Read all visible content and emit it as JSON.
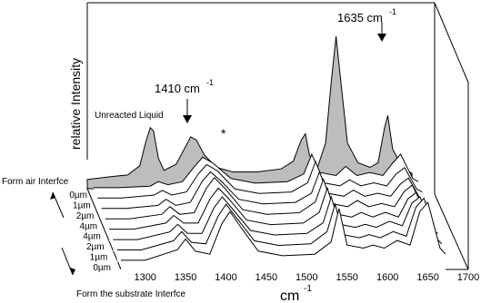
{
  "chart_data": {
    "type": "line",
    "subtype": "stacked-3d-spectra",
    "title": "",
    "xlabel": "cm",
    "xlabel_superscript": "-1",
    "ylabel": "relative Intensity",
    "xlim": [
      1270,
      1700
    ],
    "x_ticks": [
      1300,
      1350,
      1400,
      1450,
      1500,
      1550,
      1600,
      1650,
      1700
    ],
    "depth_axis": {
      "ticks": [
        "0µm",
        "1µm",
        "2µm",
        "4µm",
        "4µm",
        "2µm",
        "1µm",
        "0µm"
      ],
      "label_top": "Form air Interfce",
      "label_bottom": "Form the substrate Interfce"
    },
    "annotations": [
      {
        "text": "1410 cm",
        "sup": "-1",
        "x": 1350,
        "arrow": true
      },
      {
        "text": "1635 cm",
        "sup": "-1",
        "x": 1578,
        "arrow": true
      },
      {
        "text": "*",
        "x": 1397,
        "arrow": false
      },
      {
        "text": "Unreacted Liquid",
        "x": null,
        "arrow": false
      }
    ],
    "series": [
      {
        "name": "Unreacted Liquid",
        "filled": true,
        "x": [
          1270,
          1300,
          1320,
          1335,
          1342,
          1348,
          1352,
          1358,
          1365,
          1380,
          1390,
          1398,
          1405,
          1415,
          1430,
          1450,
          1480,
          1510,
          1525,
          1535,
          1540,
          1545,
          1555,
          1565,
          1572,
          1578,
          1584,
          1592,
          1605,
          1620,
          1630,
          1638,
          1642,
          1648,
          1660,
          1672
        ],
        "y": [
          0.06,
          0.08,
          0.09,
          0.15,
          0.3,
          0.4,
          0.38,
          0.2,
          0.12,
          0.16,
          0.26,
          0.34,
          0.32,
          0.22,
          0.14,
          0.11,
          0.11,
          0.13,
          0.18,
          0.32,
          0.36,
          0.22,
          0.14,
          0.3,
          0.7,
          1.0,
          0.7,
          0.3,
          0.17,
          0.14,
          0.17,
          0.4,
          0.48,
          0.26,
          0.14,
          0.1
        ]
      },
      {
        "name": "0µm (air)",
        "x": [
          1270,
          1300,
          1340,
          1350,
          1362,
          1380,
          1395,
          1405,
          1418,
          1440,
          1470,
          1510,
          1530,
          1540,
          1550,
          1570,
          1582,
          1596,
          1612,
          1628,
          1640,
          1650,
          1665,
          1672
        ],
        "y": [
          0.06,
          0.06,
          0.07,
          0.1,
          0.08,
          0.1,
          0.2,
          0.26,
          0.22,
          0.12,
          0.09,
          0.1,
          0.15,
          0.28,
          0.16,
          0.14,
          0.2,
          0.14,
          0.16,
          0.14,
          0.22,
          0.28,
          0.12,
          0.1
        ]
      },
      {
        "name": "1µm (air)",
        "x": [
          1270,
          1300,
          1340,
          1350,
          1362,
          1380,
          1395,
          1405,
          1418,
          1440,
          1470,
          1510,
          1530,
          1540,
          1550,
          1570,
          1582,
          1596,
          1612,
          1628,
          1640,
          1650,
          1665,
          1672
        ],
        "y": [
          0.06,
          0.06,
          0.08,
          0.11,
          0.08,
          0.1,
          0.22,
          0.28,
          0.24,
          0.12,
          0.09,
          0.1,
          0.16,
          0.3,
          0.16,
          0.14,
          0.18,
          0.14,
          0.16,
          0.14,
          0.22,
          0.26,
          0.12,
          0.1
        ]
      },
      {
        "name": "2µm (air)",
        "x": [
          1270,
          1300,
          1340,
          1350,
          1362,
          1380,
          1395,
          1405,
          1418,
          1440,
          1470,
          1510,
          1530,
          1540,
          1550,
          1570,
          1582,
          1596,
          1612,
          1628,
          1640,
          1650,
          1665,
          1672
        ],
        "y": [
          0.06,
          0.06,
          0.08,
          0.12,
          0.08,
          0.1,
          0.24,
          0.3,
          0.24,
          0.12,
          0.09,
          0.1,
          0.16,
          0.3,
          0.16,
          0.14,
          0.18,
          0.14,
          0.16,
          0.14,
          0.22,
          0.26,
          0.12,
          0.1
        ]
      },
      {
        "name": "4µm (air)",
        "x": [
          1270,
          1300,
          1340,
          1350,
          1362,
          1380,
          1395,
          1405,
          1418,
          1440,
          1470,
          1510,
          1530,
          1540,
          1550,
          1570,
          1582,
          1596,
          1612,
          1628,
          1640,
          1650,
          1665,
          1672
        ],
        "y": [
          0.06,
          0.06,
          0.09,
          0.14,
          0.09,
          0.1,
          0.26,
          0.33,
          0.26,
          0.12,
          0.09,
          0.1,
          0.17,
          0.32,
          0.16,
          0.14,
          0.18,
          0.14,
          0.16,
          0.14,
          0.24,
          0.28,
          0.12,
          0.1
        ]
      },
      {
        "name": "4µm (substrate)",
        "x": [
          1270,
          1300,
          1340,
          1350,
          1362,
          1380,
          1395,
          1405,
          1418,
          1440,
          1470,
          1510,
          1530,
          1540,
          1550,
          1570,
          1582,
          1596,
          1612,
          1628,
          1640,
          1650,
          1665,
          1672
        ],
        "y": [
          0.06,
          0.06,
          0.1,
          0.15,
          0.1,
          0.1,
          0.26,
          0.33,
          0.26,
          0.12,
          0.09,
          0.1,
          0.17,
          0.33,
          0.16,
          0.14,
          0.17,
          0.14,
          0.17,
          0.14,
          0.26,
          0.3,
          0.12,
          0.1
        ]
      },
      {
        "name": "2µm (substrate)",
        "x": [
          1270,
          1300,
          1340,
          1350,
          1362,
          1380,
          1395,
          1405,
          1418,
          1440,
          1470,
          1510,
          1530,
          1540,
          1550,
          1570,
          1582,
          1596,
          1612,
          1628,
          1640,
          1650,
          1665,
          1672
        ],
        "y": [
          0.06,
          0.06,
          0.11,
          0.16,
          0.1,
          0.1,
          0.27,
          0.34,
          0.26,
          0.12,
          0.09,
          0.1,
          0.17,
          0.34,
          0.16,
          0.14,
          0.16,
          0.14,
          0.18,
          0.15,
          0.3,
          0.34,
          0.12,
          0.1
        ]
      },
      {
        "name": "1µm (substrate)",
        "x": [
          1270,
          1300,
          1340,
          1350,
          1362,
          1380,
          1395,
          1405,
          1418,
          1440,
          1470,
          1510,
          1530,
          1540,
          1550,
          1570,
          1582,
          1596,
          1612,
          1628,
          1640,
          1650,
          1665,
          1672
        ],
        "y": [
          0.06,
          0.06,
          0.12,
          0.18,
          0.11,
          0.1,
          0.28,
          0.36,
          0.27,
          0.12,
          0.09,
          0.1,
          0.18,
          0.36,
          0.16,
          0.14,
          0.16,
          0.14,
          0.18,
          0.15,
          0.34,
          0.4,
          0.14,
          0.1
        ]
      },
      {
        "name": "0µm (substrate)",
        "x": [
          1270,
          1300,
          1340,
          1350,
          1362,
          1380,
          1395,
          1405,
          1418,
          1440,
          1470,
          1510,
          1530,
          1540,
          1550,
          1570,
          1582,
          1596,
          1612,
          1628,
          1640,
          1650,
          1665,
          1672
        ],
        "y": [
          0.06,
          0.06,
          0.13,
          0.2,
          0.12,
          0.1,
          0.3,
          0.38,
          0.28,
          0.12,
          0.09,
          0.1,
          0.18,
          0.4,
          0.16,
          0.14,
          0.16,
          0.14,
          0.19,
          0.16,
          0.38,
          0.44,
          0.14,
          0.1
        ]
      }
    ],
    "grid": false,
    "legend": "none"
  }
}
